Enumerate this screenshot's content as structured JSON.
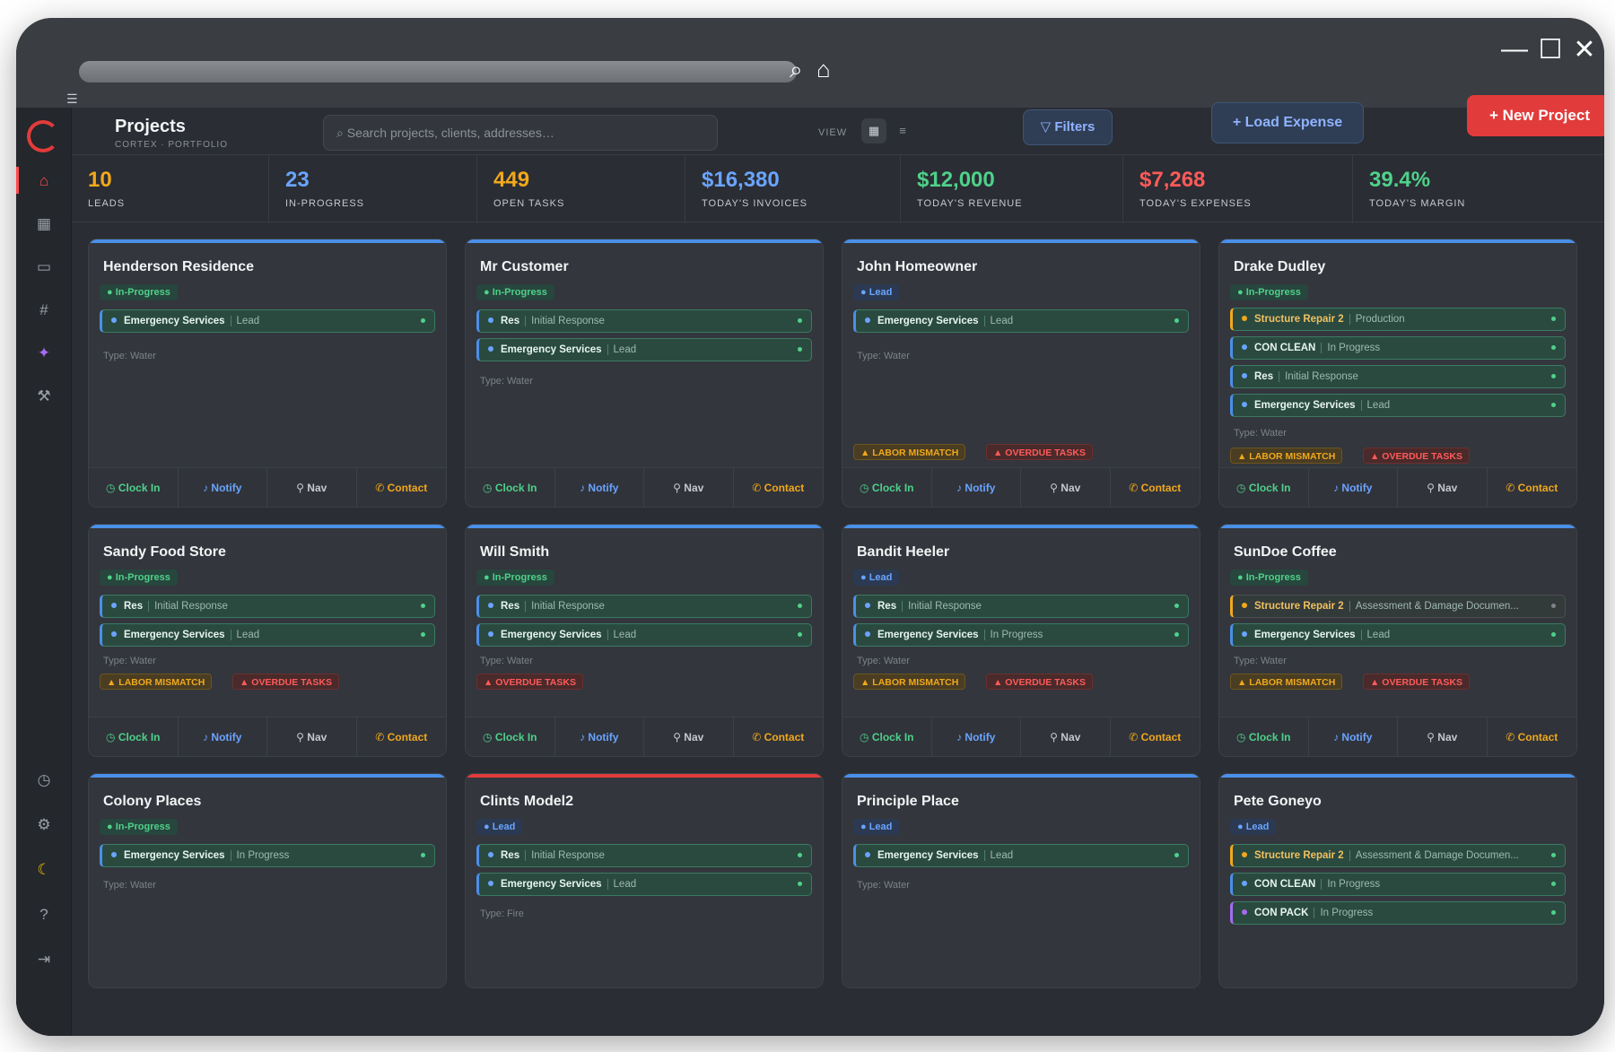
{
  "browser": {
    "minimize_glyph": "—",
    "maximize_glyph": "☐",
    "close_glyph": "✕",
    "search_glyph": "⌕",
    "home_glyph": "⌂"
  },
  "header": {
    "title": "Projects",
    "subtitle": "CORTEX · PORTFOLIO",
    "search_placeholder": "Search projects, clients, addresses…",
    "view_label": "VIEW",
    "filters_label": "Filters",
    "load_expense_label": "+ Load Expense",
    "new_project_label": "+ New Project"
  },
  "stats": [
    {
      "value": "10",
      "label": "LEADS",
      "color": "#f0a81c"
    },
    {
      "value": "23",
      "label": "IN-PROGRESS",
      "color": "#6aa4ff"
    },
    {
      "value": "449",
      "label": "OPEN TASKS",
      "color": "#f0a81c"
    },
    {
      "value": "$16,380",
      "label": "TODAY'S INVOICES",
      "color": "#6aa4ff"
    },
    {
      "value": "$12,000",
      "label": "TODAY'S REVENUE",
      "color": "#4fd18a"
    },
    {
      "value": "$7,268",
      "label": "TODAY'S EXPENSES",
      "color": "#ff5a5a"
    },
    {
      "value": "39.4%",
      "label": "TODAY'S MARGIN",
      "color": "#4fd18a"
    }
  ],
  "actions": {
    "clock_in": "Clock In",
    "notify": "Notify",
    "nav": "Nav",
    "contact": "Contact"
  },
  "warnings": {
    "labor": "▲ LABOR MISMATCH",
    "overdue": "▲ OVERDUE TASKS"
  },
  "projects": [
    {
      "name": "Henderson Residence",
      "status": "In-Progress",
      "type": "Type: Water",
      "services": [
        {
          "name": "Emergency Services",
          "status": "Lead"
        }
      ]
    },
    {
      "name": "Mr Customer",
      "status": "In-Progress",
      "type": "Type: Water",
      "services": [
        {
          "name": "Res",
          "status": "Initial Response"
        },
        {
          "name": "Emergency Services",
          "status": "Lead"
        }
      ]
    },
    {
      "name": "John Homeowner",
      "status": "Lead",
      "type": "Type: Water",
      "services": [
        {
          "name": "Emergency Services",
          "status": "Lead"
        }
      ]
    },
    {
      "name": "Drake Dudley",
      "status": "In-Progress",
      "type": "Type: Water",
      "services": [
        {
          "name": "Structure Repair 2",
          "status": "Production"
        },
        {
          "name": "CON CLEAN",
          "status": "In Progress"
        },
        {
          "name": "Res",
          "status": "Initial Response"
        },
        {
          "name": "Emergency Services",
          "status": "Lead"
        }
      ]
    },
    {
      "name": "Sandy Food Store",
      "status": "In-Progress",
      "type": "Type: Water",
      "services": [
        {
          "name": "Res",
          "status": "Initial Response"
        },
        {
          "name": "Emergency Services",
          "status": "Lead"
        }
      ]
    },
    {
      "name": "Will Smith",
      "status": "In-Progress",
      "type": "Type: Water",
      "services": [
        {
          "name": "Res",
          "status": "Initial Response"
        },
        {
          "name": "Emergency Services",
          "status": "Lead"
        }
      ]
    },
    {
      "name": "Bandit Heeler",
      "status": "Lead",
      "type": "Type: Water",
      "services": [
        {
          "name": "Res",
          "status": "Initial Response"
        },
        {
          "name": "Emergency Services",
          "status": "In Progress"
        }
      ]
    },
    {
      "name": "SunDoe Coffee",
      "status": "In-Progress",
      "type": "Type: Water",
      "services": [
        {
          "name": "Structure Repair 2",
          "status": "Assessment & Damage Documen..."
        },
        {
          "name": "Emergency Services",
          "status": "Lead"
        }
      ]
    },
    {
      "name": "Colony Places",
      "status": "In-Progress",
      "type": "Type: Water",
      "services": [
        {
          "name": "Emergency Services",
          "status": "In Progress"
        }
      ]
    },
    {
      "name": "Clints Model2",
      "status": "Lead",
      "type": "Type: Fire",
      "services": [
        {
          "name": "Res",
          "status": "Initial Response"
        },
        {
          "name": "Emergency Services",
          "status": "Lead"
        }
      ]
    },
    {
      "name": "Principle Place",
      "status": "Lead",
      "type": "Type: Water",
      "services": [
        {
          "name": "Emergency Services",
          "status": "Lead"
        }
      ]
    },
    {
      "name": "Pete Goneyo",
      "status": "Lead",
      "type": "",
      "services": [
        {
          "name": "Structure Repair 2",
          "status": "Assessment & Damage Documen..."
        },
        {
          "name": "CON CLEAN",
          "status": "In Progress"
        },
        {
          "name": "CON PACK",
          "status": "In Progress"
        }
      ]
    }
  ]
}
